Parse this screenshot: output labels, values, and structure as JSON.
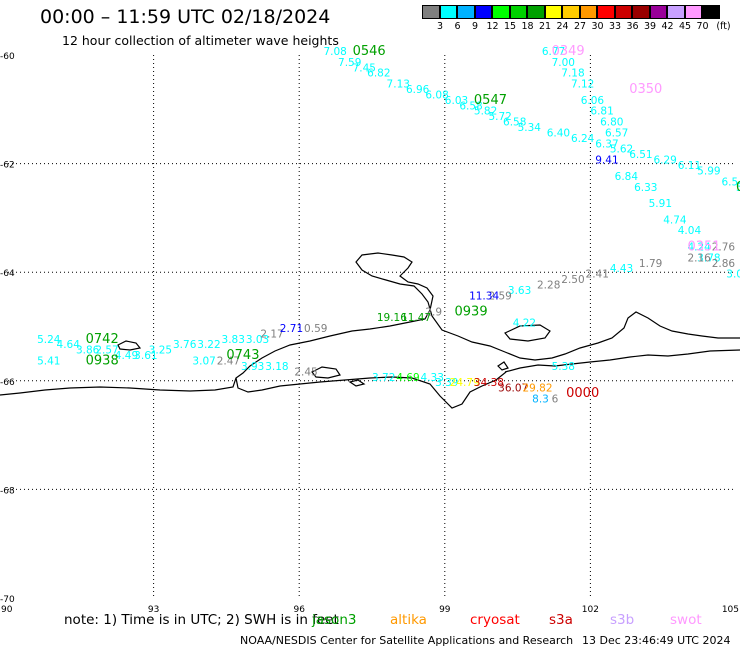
{
  "header": {
    "title": "00:00 – 11:59 UTC 02/18/2024",
    "subtitle": "12 hour collection of altimeter wave heights"
  },
  "legend": {
    "unit": "(ft)",
    "bins": [
      {
        "label": "3",
        "color": "#7f7f7f"
      },
      {
        "label": "6",
        "color": "#00ffff"
      },
      {
        "label": "9",
        "color": "#00b2ff"
      },
      {
        "label": "12",
        "color": "#0000ff"
      },
      {
        "label": "15",
        "color": "#00ff00"
      },
      {
        "label": "18",
        "color": "#00d200"
      },
      {
        "label": "21",
        "color": "#00a000"
      },
      {
        "label": "24",
        "color": "#ffff00"
      },
      {
        "label": "27",
        "color": "#ffcc00"
      },
      {
        "label": "30",
        "color": "#ff9900"
      },
      {
        "label": "33",
        "color": "#ff0000"
      },
      {
        "label": "36",
        "color": "#cc0000"
      },
      {
        "label": "39",
        "color": "#990000"
      },
      {
        "label": "42",
        "color": "#990099"
      },
      {
        "label": "45",
        "color": "#c8a0ff"
      },
      {
        "label": "70",
        "color": "#ff99ff"
      },
      {
        "label": "",
        "color": "#000000"
      }
    ]
  },
  "axes": {
    "lon_ticks": [
      "90",
      "93",
      "96",
      "99",
      "102",
      "105"
    ],
    "lat_ticks": [
      "-60",
      "-62",
      "-64",
      "-66",
      "-68",
      "-70"
    ]
  },
  "passes": [
    {
      "time": "0546",
      "lon": 97.1,
      "lat": -60.0,
      "color": "#00a000"
    },
    {
      "time": "0547",
      "lon": 99.6,
      "lat": -60.9,
      "color": "#00a000"
    },
    {
      "time": "0349",
      "lon": 101.2,
      "lat": -60.0,
      "color": "#ff99ff"
    },
    {
      "time": "0350",
      "lon": 102.8,
      "lat": -60.7,
      "color": "#ff99ff"
    },
    {
      "time": "0939",
      "lon": 99.2,
      "lat": -64.8,
      "color": "#00a000"
    },
    {
      "time": "0742",
      "lon": 91.6,
      "lat": -65.3,
      "color": "#00a000"
    },
    {
      "time": "0938",
      "lon": 91.6,
      "lat": -65.7,
      "color": "#00a000"
    },
    {
      "time": "0743",
      "lon": 94.5,
      "lat": -65.6,
      "color": "#00a000"
    },
    {
      "time": "0351",
      "lon": 104.0,
      "lat": -63.6,
      "color": "#ff99ff"
    },
    {
      "time": "0000",
      "lon": 101.5,
      "lat": -66.3,
      "color": "#cc0000"
    },
    {
      "time": "0",
      "lon": 105.0,
      "lat": -62.5,
      "color": "#00a000"
    }
  ],
  "observations": [
    {
      "v": "7.08",
      "lon": 96.5,
      "lat": -60.0,
      "color": "#00ffff"
    },
    {
      "v": "7.59",
      "lon": 96.8,
      "lat": -60.2,
      "color": "#00ffff"
    },
    {
      "v": "7.45",
      "lon": 97.1,
      "lat": -60.3,
      "color": "#00ffff"
    },
    {
      "v": "6.82",
      "lon": 97.4,
      "lat": -60.4,
      "color": "#00ffff"
    },
    {
      "v": "7.13",
      "lon": 97.8,
      "lat": -60.6,
      "color": "#00ffff"
    },
    {
      "v": "6.96",
      "lon": 98.2,
      "lat": -60.7,
      "color": "#00ffff"
    },
    {
      "v": "6.08",
      "lon": 98.6,
      "lat": -60.8,
      "color": "#00ffff"
    },
    {
      "v": "6.03",
      "lon": 99.0,
      "lat": -60.9,
      "color": "#00ffff"
    },
    {
      "v": "6.58",
      "lon": 99.3,
      "lat": -61.0,
      "color": "#00ffff"
    },
    {
      "v": "5.82",
      "lon": 99.6,
      "lat": -61.1,
      "color": "#00ffff"
    },
    {
      "v": "5.72",
      "lon": 99.9,
      "lat": -61.2,
      "color": "#00ffff"
    },
    {
      "v": "6.58",
      "lon": 100.2,
      "lat": -61.3,
      "color": "#00ffff"
    },
    {
      "v": "5.34",
      "lon": 100.5,
      "lat": -61.4,
      "color": "#00ffff"
    },
    {
      "v": "6.77",
      "lon": 101.0,
      "lat": -60.0,
      "color": "#00ffff"
    },
    {
      "v": "7.00",
      "lon": 101.2,
      "lat": -60.2,
      "color": "#00ffff"
    },
    {
      "v": "7.18",
      "lon": 101.4,
      "lat": -60.4,
      "color": "#00ffff"
    },
    {
      "v": "7.12",
      "lon": 101.6,
      "lat": -60.6,
      "color": "#00ffff"
    },
    {
      "v": "6.06",
      "lon": 101.8,
      "lat": -60.9,
      "color": "#00ffff"
    },
    {
      "v": "6.81",
      "lon": 102.0,
      "lat": -61.1,
      "color": "#00ffff"
    },
    {
      "v": "6.80",
      "lon": 102.2,
      "lat": -61.3,
      "color": "#00ffff"
    },
    {
      "v": "6.40",
      "lon": 101.1,
      "lat": -61.5,
      "color": "#00ffff"
    },
    {
      "v": "6.57",
      "lon": 102.3,
      "lat": -61.5,
      "color": "#00ffff"
    },
    {
      "v": "6.24",
      "lon": 101.6,
      "lat": -61.6,
      "color": "#00ffff"
    },
    {
      "v": "6.37",
      "lon": 102.1,
      "lat": -61.7,
      "color": "#00ffff"
    },
    {
      "v": "5.62",
      "lon": 102.4,
      "lat": -61.8,
      "color": "#00ffff"
    },
    {
      "v": "9.41",
      "lon": 102.1,
      "lat": -62.0,
      "color": "#0000ff"
    },
    {
      "v": "6.51",
      "lon": 102.8,
      "lat": -61.9,
      "color": "#00ffff"
    },
    {
      "v": "6.29",
      "lon": 103.3,
      "lat": -62.0,
      "color": "#00ffff"
    },
    {
      "v": "6.11",
      "lon": 103.8,
      "lat": -62.1,
      "color": "#00ffff"
    },
    {
      "v": "5.99",
      "lon": 104.2,
      "lat": -62.2,
      "color": "#00ffff"
    },
    {
      "v": "6.54",
      "lon": 104.7,
      "lat": -62.4,
      "color": "#00ffff"
    },
    {
      "v": "5.83",
      "lon": 105.0,
      "lat": -62.5,
      "color": "#00ffff"
    },
    {
      "v": "4.61",
      "lon": 105.5,
      "lat": -62.7,
      "color": "#00ffff"
    },
    {
      "v": "6.84",
      "lon": 102.5,
      "lat": -62.3,
      "color": "#00ffff"
    },
    {
      "v": "6.33",
      "lon": 102.9,
      "lat": -62.5,
      "color": "#00ffff"
    },
    {
      "v": "5.91",
      "lon": 103.2,
      "lat": -62.8,
      "color": "#00ffff"
    },
    {
      "v": "4.74",
      "lon": 103.5,
      "lat": -63.1,
      "color": "#00ffff"
    },
    {
      "v": "4.04",
      "lon": 103.8,
      "lat": -63.3,
      "color": "#00ffff"
    },
    {
      "v": "4.24",
      "lon": 104.0,
      "lat": -63.6,
      "color": "#00ffff"
    },
    {
      "v": "3.78",
      "lon": 104.2,
      "lat": -63.8,
      "color": "#00ffff"
    },
    {
      "v": "2.76",
      "lon": 104.5,
      "lat": -63.6,
      "color": "#7f7f7f"
    },
    {
      "v": "2.16",
      "lon": 104.0,
      "lat": -63.8,
      "color": "#7f7f7f"
    },
    {
      "v": "2.86",
      "lon": 104.5,
      "lat": -63.9,
      "color": "#7f7f7f"
    },
    {
      "v": "2.88",
      "lon": 105.5,
      "lat": -63.5,
      "color": "#7f7f7f"
    },
    {
      "v": "3.02",
      "lon": 104.8,
      "lat": -64.1,
      "color": "#00ffff"
    },
    {
      "v": "2.53",
      "lon": 105.1,
      "lat": -64.4,
      "color": "#7f7f7f"
    },
    {
      "v": "1.17",
      "lon": 105.4,
      "lat": -64.6,
      "color": "#7f7f7f"
    },
    {
      "v": "2.72",
      "lon": 105.6,
      "lat": -64.9,
      "color": "#7f7f7f"
    },
    {
      "v": "1.79",
      "lon": 103.0,
      "lat": -63.9,
      "color": "#7f7f7f"
    },
    {
      "v": "4.43",
      "lon": 102.4,
      "lat": -64.0,
      "color": "#00ffff"
    },
    {
      "v": "2.41",
      "lon": 101.9,
      "lat": -64.1,
      "color": "#7f7f7f"
    },
    {
      "v": "2.50",
      "lon": 101.4,
      "lat": -64.2,
      "color": "#7f7f7f"
    },
    {
      "v": "2.28",
      "lon": 100.9,
      "lat": -64.3,
      "color": "#7f7f7f"
    },
    {
      "v": "3.63",
      "lon": 100.3,
      "lat": -64.4,
      "color": "#00ffff"
    },
    {
      "v": "2.59",
      "lon": 99.9,
      "lat": -64.5,
      "color": "#7f7f7f"
    },
    {
      "v": "11.34",
      "lon": 99.5,
      "lat": -64.5,
      "color": "#0000ff"
    },
    {
      "v": "2.9",
      "lon": 98.6,
      "lat": -64.8,
      "color": "#7f7f7f"
    },
    {
      "v": "11.47",
      "lon": 98.1,
      "lat": -64.9,
      "color": "#00a000"
    },
    {
      "v": "19.16",
      "lon": 97.6,
      "lat": -64.9,
      "color": "#00a000"
    },
    {
      "v": "4.22",
      "lon": 100.4,
      "lat": -65.0,
      "color": "#00ffff"
    },
    {
      "v": "5.24",
      "lon": 90.6,
      "lat": -65.3,
      "color": "#00ffff"
    },
    {
      "v": "4.64",
      "lon": 91.0,
      "lat": -65.4,
      "color": "#00ffff"
    },
    {
      "v": "3.86",
      "lon": 91.4,
      "lat": -65.5,
      "color": "#00ffff"
    },
    {
      "v": "2.57",
      "lon": 91.8,
      "lat": -65.5,
      "color": "#00ffff"
    },
    {
      "v": "4.49",
      "lon": 92.2,
      "lat": -65.6,
      "color": "#00ffff"
    },
    {
      "v": "3.61",
      "lon": 92.6,
      "lat": -65.6,
      "color": "#00ffff"
    },
    {
      "v": "3.25",
      "lon": 92.9,
      "lat": -65.5,
      "color": "#00ffff"
    },
    {
      "v": "3.76",
      "lon": 93.4,
      "lat": -65.4,
      "color": "#00ffff"
    },
    {
      "v": "3.22",
      "lon": 93.9,
      "lat": -65.4,
      "color": "#00ffff"
    },
    {
      "v": "3.83",
      "lon": 94.4,
      "lat": -65.3,
      "color": "#00ffff"
    },
    {
      "v": "3.03",
      "lon": 94.9,
      "lat": -65.3,
      "color": "#00ffff"
    },
    {
      "v": "2.17",
      "lon": 95.2,
      "lat": -65.2,
      "color": "#7f7f7f"
    },
    {
      "v": "2.71",
      "lon": 95.6,
      "lat": -65.1,
      "color": "#0000ff"
    },
    {
      "v": "0.59",
      "lon": 96.1,
      "lat": -65.1,
      "color": "#7f7f7f"
    },
    {
      "v": "5.41",
      "lon": 90.6,
      "lat": -65.7,
      "color": "#00ffff"
    },
    {
      "v": "3.07",
      "lon": 93.8,
      "lat": -65.7,
      "color": "#00ffff"
    },
    {
      "v": "2.47",
      "lon": 94.3,
      "lat": -65.7,
      "color": "#7f7f7f"
    },
    {
      "v": "3.93",
      "lon": 94.8,
      "lat": -65.8,
      "color": "#00ffff"
    },
    {
      "v": "3.18",
      "lon": 95.3,
      "lat": -65.8,
      "color": "#00ffff"
    },
    {
      "v": "2.45",
      "lon": 95.9,
      "lat": -65.9,
      "color": "#7f7f7f"
    },
    {
      "v": "3.72",
      "lon": 97.5,
      "lat": -66.0,
      "color": "#00ffff"
    },
    {
      "v": "4.69",
      "lon": 98.0,
      "lat": -66.0,
      "color": "#00ff00"
    },
    {
      "v": "4.33",
      "lon": 98.5,
      "lat": -66.0,
      "color": "#00ffff"
    },
    {
      "v": "3.39",
      "lon": 98.8,
      "lat": -66.1,
      "color": "#00ffff"
    },
    {
      "v": "24.79",
      "lon": 99.1,
      "lat": -66.1,
      "color": "#ffff00"
    },
    {
      "v": "34.38",
      "lon": 99.6,
      "lat": -66.1,
      "color": "#cc0000"
    },
    {
      "v": "36.07",
      "lon": 100.1,
      "lat": -66.2,
      "color": "#990000"
    },
    {
      "v": "29.82",
      "lon": 100.6,
      "lat": -66.2,
      "color": "#ff9900"
    },
    {
      "v": "5.38",
      "lon": 101.2,
      "lat": -65.8,
      "color": "#00ffff"
    },
    {
      "v": "8.3",
      "lon": 100.8,
      "lat": -66.4,
      "color": "#00b2ff"
    },
    {
      "v": "6",
      "lon": 101.2,
      "lat": -66.4,
      "color": "#7f7f7f"
    }
  ],
  "footer": {
    "note": "note:  1) Time is in UTC; 2) SWH is in feet",
    "sats": [
      {
        "name": "jason3",
        "color": "#00a000"
      },
      {
        "name": "altika",
        "color": "#ff9900"
      },
      {
        "name": "cryosat",
        "color": "#ff0000"
      },
      {
        "name": "s3a",
        "color": "#cc0000"
      },
      {
        "name": "s3b",
        "color": "#c8a0ff"
      },
      {
        "name": "swot",
        "color": "#ff99ff"
      }
    ],
    "credit": "NOAA/NESDIS Center for Satellite Applications and Research",
    "stamp": "13 Dec 23:46:49 UTC 2024"
  }
}
